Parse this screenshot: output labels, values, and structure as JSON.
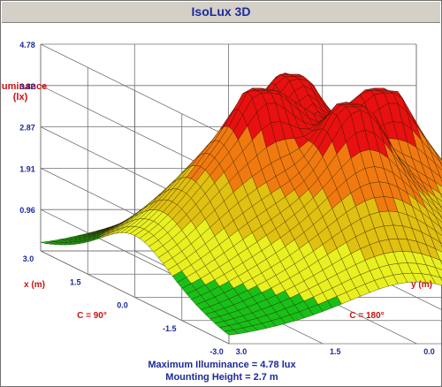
{
  "window": {
    "title": "IsoLux 3D"
  },
  "colors": {
    "title": "#1a2a9a",
    "label_red": "#cc1010",
    "tick_blue": "#1a2a9a"
  },
  "chart_data": {
    "type": "surface3d",
    "z_axis": {
      "label_line1": "Illuminance",
      "label_line2": "(lx)",
      "ticks": [
        "4.78",
        "3.82",
        "2.87",
        "1.91",
        "0.96"
      ],
      "range": [
        0,
        4.78
      ]
    },
    "x_axis": {
      "label": "x (m)",
      "ticks": [
        "3.0",
        "1.5",
        "0.0",
        "-1.5",
        "-3.0"
      ],
      "range": [
        -3.0,
        3.0
      ]
    },
    "y_axis": {
      "label": "y (m)",
      "ticks": [
        "-3.0",
        "-1.5",
        "0.0",
        "1.5",
        "3.0"
      ],
      "range": [
        -3.0,
        3.0
      ]
    },
    "c_labels": {
      "left": "C = 90°",
      "right": "C = 180°"
    },
    "color_bands": [
      {
        "max": 0.96,
        "color": "#18c018"
      },
      {
        "max": 1.91,
        "color": "#e8f020"
      },
      {
        "max": 2.87,
        "color": "#e0c010"
      },
      {
        "max": 3.82,
        "color": "#f07a10"
      },
      {
        "max": 4.78,
        "color": "#e81010"
      }
    ],
    "max_illuminance": 4.78
  },
  "footer": {
    "max_line": "Maximum Illuminance  =  4.78 lux",
    "height_line": "Mounting Height  =  2.7 m"
  }
}
